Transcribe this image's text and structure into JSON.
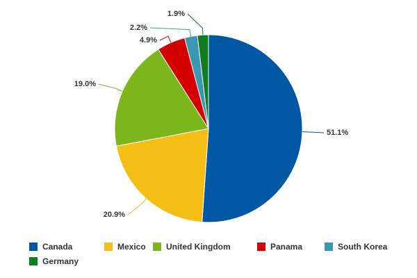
{
  "chart_data": {
    "type": "pie",
    "categories": [
      "Canada",
      "Mexico",
      "United Kingdom",
      "Panama",
      "South Korea",
      "Germany"
    ],
    "values": [
      51.1,
      20.9,
      19.0,
      4.9,
      2.2,
      1.9
    ],
    "value_labels": [
      "51.1%",
      "20.9%",
      "19.0%",
      "4.9%",
      "2.2%",
      "1.9%"
    ],
    "colors": [
      "#0057a3",
      "#f5be14",
      "#7cb51c",
      "#d40000",
      "#3a97b2",
      "#117c1f"
    ],
    "legend": "bottom-left"
  }
}
